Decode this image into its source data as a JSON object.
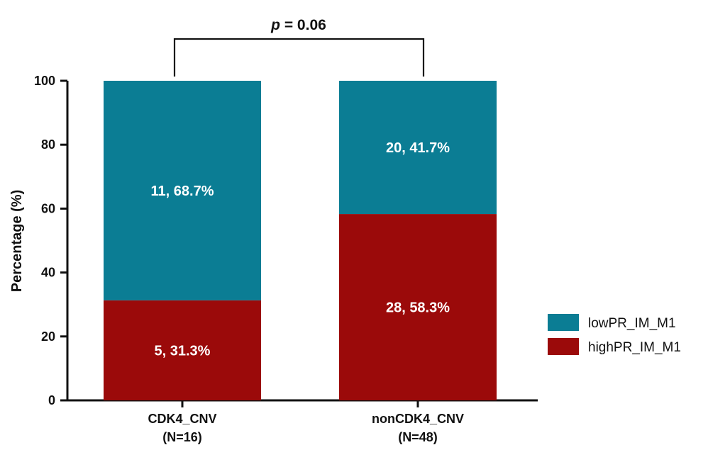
{
  "chart_data": {
    "type": "bar",
    "stacked": true,
    "title": "",
    "xlabel": "",
    "ylabel": "Percentage (%)",
    "ylim": [
      0,
      100
    ],
    "yticks": [
      "0",
      "20",
      "40",
      "60",
      "80",
      "100"
    ],
    "categories": [
      {
        "line1": "CDK4_CNV",
        "line2": "(N=16)"
      },
      {
        "line1": "nonCDK4_CNV",
        "line2": "(N=48)"
      }
    ],
    "series": [
      {
        "name": "highPR_IM_M1",
        "color": "#9b0a0a",
        "values": [
          31.3,
          58.3
        ],
        "labels": [
          "5, 31.3%",
          "28, 58.3%"
        ]
      },
      {
        "name": "lowPR_IM_M1",
        "color": "#0b7d94",
        "values": [
          68.7,
          41.7
        ],
        "labels": [
          "11, 68.7%",
          "20, 41.7%"
        ]
      }
    ],
    "legend": {
      "position": "right",
      "order": [
        "lowPR_IM_M1",
        "highPR_IM_M1"
      ]
    },
    "annotation": {
      "p_symbol": "p",
      "p_text": " = 0.06"
    }
  }
}
